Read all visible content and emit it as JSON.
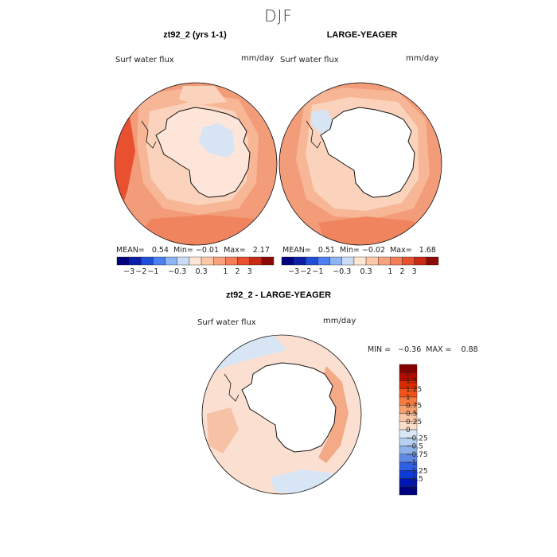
{
  "figure": {
    "title": "DJF"
  },
  "colors": {
    "hbar_palette": [
      "#00007f",
      "#0a1fa6",
      "#1f4fd8",
      "#4c7ff0",
      "#8fb4f4",
      "#c9dcf6",
      "#fde6d4",
      "#fcc8a8",
      "#f9a37e",
      "#f57d57",
      "#e8502f",
      "#c82a16",
      "#8c0a05"
    ],
    "vbar_palette": [
      "#850000",
      "#b00c00",
      "#d92a00",
      "#f0521a",
      "#f47a3e",
      "#f6a070",
      "#f9c6a8",
      "#fbdcc7",
      "#d9e6f6",
      "#b7cff0",
      "#8fb1ea",
      "#5f89e4",
      "#2f5fe2",
      "#0d3bd6",
      "#0017b3",
      "#00007f"
    ],
    "field_deep": "#f39c7a",
    "field_mid": "#f7b796",
    "field_light": "#fbd3bc",
    "field_pale": "#fde6d9",
    "ice_blue": "#d6e4f4",
    "diff_base": "#fbe0d1",
    "diff_blue": "#d7e5f5",
    "diff_orange": "#f4a987"
  },
  "chart_data": [
    {
      "type": "heatmap",
      "title": "zt92_2 (yrs 1-1)",
      "variable_label": "Surf water flux",
      "units_label": "mm/day",
      "stats": {
        "mean_label": "MEAN=",
        "mean": "0.54",
        "min_label": "Min=",
        "min": "−0.01",
        "max_label": "Max=",
        "max": "2.17"
      },
      "colorbar_ticks": [
        "−3",
        "−2",
        "−1",
        "−0.3",
        "0.3",
        "1",
        "2",
        "3"
      ]
    },
    {
      "type": "heatmap",
      "title": "LARGE-YEAGER",
      "variable_label": "Surf water flux",
      "units_label": "mm/day",
      "stats": {
        "mean_label": "MEAN=",
        "mean": "0.51",
        "min_label": "Min=",
        "min": "−0.02",
        "max_label": "Max=",
        "max": "1.68"
      },
      "colorbar_ticks": [
        "−3",
        "−2",
        "−1",
        "−0.3",
        "0.3",
        "1",
        "2",
        "3"
      ]
    },
    {
      "type": "heatmap",
      "title": "zt92_2 - LARGE-YEAGER",
      "variable_label": "Surf water flux",
      "units_label": "mm/day",
      "minmax": "MIN =   −0.36  MAX =    0.88",
      "colorbar_ticks": [
        "2",
        "1.5",
        "1.25",
        "1",
        "0.75",
        "0.5",
        "0.25",
        "0",
        "−0.25",
        "−0.5",
        "−0.75",
        "−1",
        "−1.25",
        "−1.5",
        "−2"
      ]
    }
  ]
}
